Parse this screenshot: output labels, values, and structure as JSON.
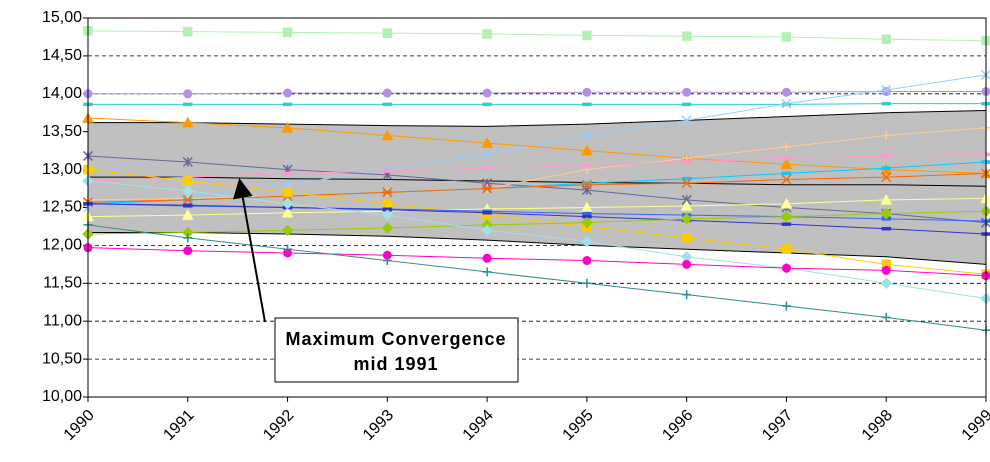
{
  "chart_data": {
    "type": "line",
    "x": [
      1990,
      1991,
      1992,
      1993,
      1994,
      1995,
      1996,
      1997,
      1998,
      1999
    ],
    "xlim": [
      1990,
      1999
    ],
    "xticks": [
      1990,
      1991,
      1992,
      1993,
      1994,
      1995,
      1996,
      1997,
      1998,
      1999
    ],
    "ylim": [
      10,
      15
    ],
    "yticks": [
      {
        "value": 10,
        "label": "10,00"
      },
      {
        "value": 10.5,
        "label": "10,50"
      },
      {
        "value": 11,
        "label": "11,00"
      },
      {
        "value": 11.5,
        "label": "11,50"
      },
      {
        "value": 12,
        "label": "12,00"
      },
      {
        "value": 12.5,
        "label": "12,50"
      },
      {
        "value": 13,
        "label": "13,00"
      },
      {
        "value": 13.5,
        "label": "13,50"
      },
      {
        "value": 14,
        "label": "14,00"
      },
      {
        "value": 14.5,
        "label": "14,50"
      },
      {
        "value": 15,
        "label": "15,00"
      }
    ],
    "grid": true,
    "band": {
      "color": "#c0c0c0",
      "upper": [
        13.62,
        13.62,
        13.6,
        13.58,
        13.57,
        13.6,
        13.65,
        13.7,
        13.75,
        13.78
      ],
      "median": [
        12.9,
        12.9,
        12.88,
        12.87,
        12.85,
        12.83,
        12.82,
        12.8,
        12.8,
        12.78
      ],
      "lower": [
        12.17,
        12.17,
        12.15,
        12.12,
        12.07,
        12.0,
        11.95,
        11.9,
        11.85,
        11.75
      ]
    },
    "series": [
      {
        "color": "#b3f0b3",
        "marker": "square",
        "values": [
          14.83,
          14.82,
          14.81,
          14.8,
          14.79,
          14.77,
          14.76,
          14.75,
          14.72,
          14.7
        ]
      },
      {
        "color": "#b38fe6",
        "marker": "circle",
        "values": [
          14.0,
          14.0,
          14.01,
          14.01,
          14.01,
          14.02,
          14.02,
          14.02,
          14.03,
          14.03
        ]
      },
      {
        "color": "#33cccc",
        "marker": "dash",
        "values": [
          13.86,
          13.86,
          13.86,
          13.86,
          13.86,
          13.86,
          13.86,
          13.86,
          13.87,
          13.87
        ]
      },
      {
        "color": "#99ccff",
        "marker": "x",
        "values": [
          12.5,
          12.65,
          12.8,
          13.0,
          13.2,
          13.45,
          13.65,
          13.87,
          14.05,
          14.25
        ]
      },
      {
        "color": "#ff9900",
        "marker": "triangle",
        "values": [
          13.68,
          13.62,
          13.55,
          13.45,
          13.35,
          13.25,
          13.15,
          13.07,
          13.0,
          12.95
        ]
      },
      {
        "color": "#666699",
        "marker": "star",
        "values": [
          13.18,
          13.1,
          13.0,
          12.93,
          12.82,
          12.73,
          12.6,
          12.5,
          12.42,
          12.3
        ]
      },
      {
        "color": "#ffcc99",
        "marker": "plus",
        "values": [
          12.6,
          12.62,
          12.65,
          12.7,
          12.75,
          13.0,
          13.15,
          13.3,
          13.45,
          13.55
        ]
      },
      {
        "color": "#ff99cc",
        "marker": "dash",
        "values": [
          12.85,
          12.9,
          12.95,
          12.98,
          13.02,
          13.05,
          13.1,
          13.15,
          13.18,
          13.2
        ]
      },
      {
        "color": "#00ccff",
        "marker": "dash",
        "values": [
          12.55,
          12.6,
          12.65,
          12.7,
          12.75,
          12.82,
          12.88,
          12.95,
          13.02,
          13.1
        ]
      },
      {
        "color": "#ff6600",
        "marker": "x",
        "values": [
          12.57,
          12.6,
          12.65,
          12.7,
          12.75,
          12.8,
          12.82,
          12.87,
          12.9,
          12.95
        ]
      },
      {
        "color": "#ffcc00",
        "marker": "square",
        "values": [
          13.0,
          12.85,
          12.7,
          12.55,
          12.4,
          12.25,
          12.1,
          11.95,
          11.75,
          11.62
        ]
      },
      {
        "color": "#ffff99",
        "marker": "triangle",
        "values": [
          12.38,
          12.4,
          12.43,
          12.45,
          12.48,
          12.5,
          12.52,
          12.55,
          12.6,
          12.62
        ]
      },
      {
        "color": "#3366ff",
        "marker": "dash",
        "values": [
          12.55,
          12.52,
          12.5,
          12.48,
          12.45,
          12.42,
          12.4,
          12.38,
          12.35,
          12.32
        ]
      },
      {
        "color": "#3333cc",
        "marker": "dash",
        "values": [
          12.55,
          12.53,
          12.5,
          12.47,
          12.43,
          12.38,
          12.33,
          12.28,
          12.22,
          12.15
        ]
      },
      {
        "color": "#99cc00",
        "marker": "diamond",
        "values": [
          12.15,
          12.17,
          12.2,
          12.23,
          12.27,
          12.3,
          12.35,
          12.38,
          12.42,
          12.45
        ]
      },
      {
        "color": "#a0e0e8",
        "marker": "diamond",
        "values": [
          12.85,
          12.72,
          12.55,
          12.4,
          12.2,
          12.05,
          11.85,
          11.7,
          11.5,
          11.3
        ]
      },
      {
        "color": "#ff00cc",
        "marker": "circle",
        "values": [
          11.97,
          11.93,
          11.9,
          11.87,
          11.83,
          11.8,
          11.75,
          11.7,
          11.67,
          11.6
        ]
      },
      {
        "color": "#2e8b8b",
        "marker": "plus",
        "values": [
          12.27,
          12.1,
          11.95,
          11.8,
          11.65,
          11.5,
          11.35,
          11.2,
          11.05,
          10.88
        ]
      }
    ],
    "annotation": [
      "Maximum Convergence",
      "mid 1991"
    ]
  }
}
